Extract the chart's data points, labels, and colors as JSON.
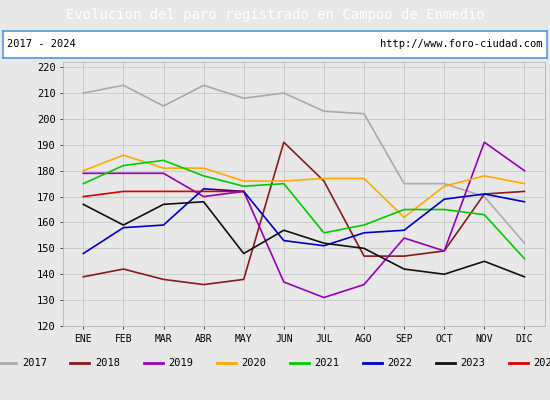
{
  "title": "Evolucion del paro registrado en Campoo de Enmedio",
  "subtitle_left": "2017 - 2024",
  "subtitle_right": "http://www.foro-ciudad.com",
  "months": [
    "ENE",
    "FEB",
    "MAR",
    "ABR",
    "MAY",
    "JUN",
    "JUL",
    "AGO",
    "SEP",
    "OCT",
    "NOV",
    "DIC"
  ],
  "ylim": [
    120,
    222
  ],
  "yticks": [
    120,
    130,
    140,
    150,
    160,
    170,
    180,
    190,
    200,
    210,
    220
  ],
  "series": {
    "2017": {
      "color": "#aaaaaa",
      "values": [
        210,
        213,
        205,
        213,
        208,
        210,
        203,
        202,
        175,
        175,
        170,
        152
      ]
    },
    "2018": {
      "color": "#8b1a1a",
      "values": [
        139,
        142,
        138,
        136,
        138,
        191,
        176,
        147,
        147,
        149,
        171,
        172
      ]
    },
    "2019": {
      "color": "#9900bb",
      "values": [
        179,
        179,
        179,
        170,
        172,
        137,
        131,
        136,
        154,
        149,
        191,
        180
      ]
    },
    "2020": {
      "color": "#ffaa00",
      "values": [
        180,
        186,
        181,
        181,
        176,
        176,
        177,
        177,
        162,
        174,
        178,
        175
      ]
    },
    "2021": {
      "color": "#00cc00",
      "values": [
        175,
        182,
        184,
        178,
        174,
        175,
        156,
        159,
        165,
        165,
        163,
        146
      ]
    },
    "2022": {
      "color": "#0000cc",
      "values": [
        148,
        158,
        159,
        173,
        172,
        153,
        151,
        156,
        157,
        169,
        171,
        168
      ]
    },
    "2023": {
      "color": "#111111",
      "values": [
        167,
        159,
        167,
        168,
        148,
        157,
        152,
        150,
        142,
        140,
        145,
        139
      ]
    },
    "2024": {
      "color": "#dd0000",
      "values": [
        170,
        172,
        172,
        172,
        172,
        null,
        null,
        null,
        null,
        null,
        null,
        null
      ]
    }
  },
  "title_bg": "#4a90d9",
  "title_color": "white",
  "title_fontsize": 10,
  "border_color": "#5599dd",
  "background_color": "#e8e8e8",
  "plot_bg": "#e8e8e8",
  "grid_color": "#cccccc"
}
